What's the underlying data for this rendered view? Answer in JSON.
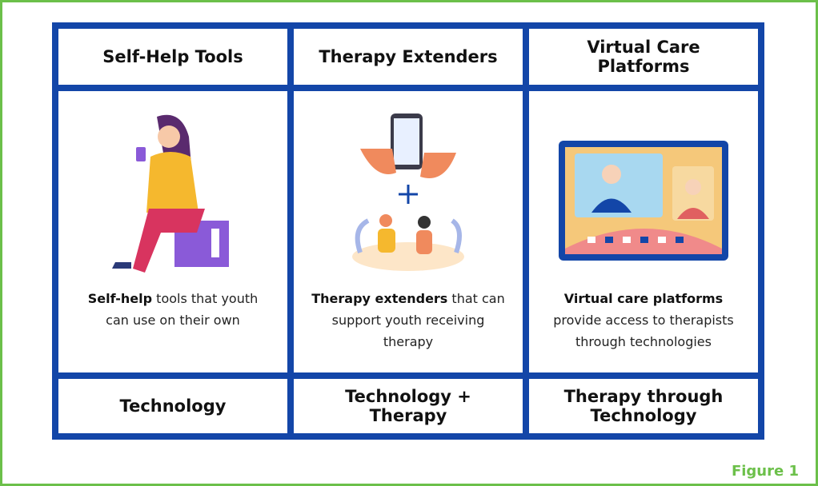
{
  "columns": [
    {
      "header": "Self-Help Tools",
      "description": {
        "bold": "Self-help",
        "text": " tools that youth can use on their own"
      },
      "footer": "Technology"
    },
    {
      "header": "Therapy Extenders",
      "description": {
        "bold": "Therapy extenders",
        "text": " that can support youth receiving therapy"
      },
      "footer": "Technology + Therapy"
    },
    {
      "header": "Virtual Care Platforms",
      "description": {
        "bold": "Virtual care platforms",
        "text": " provide access to therapists through technologies"
      },
      "footer": "Therapy through Technology"
    }
  ],
  "caption": "Figure 1"
}
